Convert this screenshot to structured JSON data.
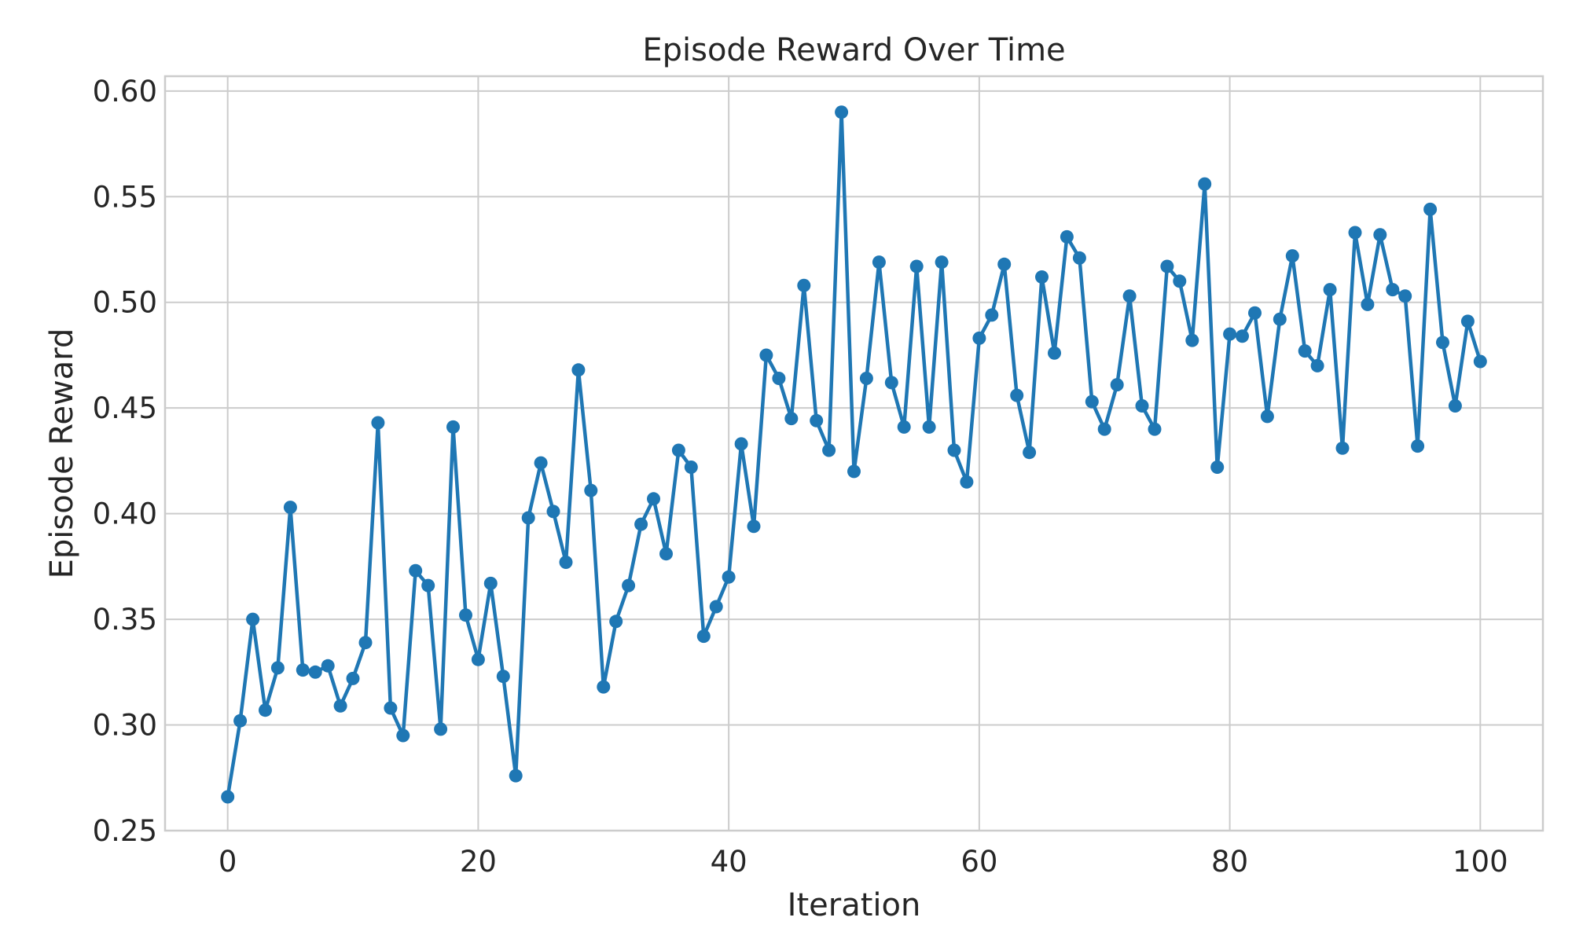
{
  "chart_data": {
    "type": "line",
    "title": "Episode Reward Over Time",
    "xlabel": "Iteration",
    "ylabel": "Episode Reward",
    "xlim": [
      -5,
      105
    ],
    "ylim": [
      0.25,
      0.607
    ],
    "xticks": [
      0,
      20,
      40,
      60,
      80,
      100
    ],
    "xtick_labels": [
      "0",
      "20",
      "40",
      "60",
      "80",
      "100"
    ],
    "yticks": [
      0.25,
      0.3,
      0.35,
      0.4,
      0.45,
      0.5,
      0.55,
      0.6
    ],
    "ytick_labels": [
      "0.25",
      "0.30",
      "0.35",
      "0.40",
      "0.45",
      "0.50",
      "0.55",
      "0.60"
    ],
    "grid": true,
    "color": "#1f77b4",
    "series": [
      {
        "x": [
          0,
          1,
          2,
          3,
          4,
          5,
          6,
          7,
          8,
          9,
          10,
          11,
          12,
          13,
          14,
          15,
          16,
          17,
          18,
          19,
          20,
          21,
          22,
          23,
          24,
          25,
          26,
          27,
          28,
          29,
          30,
          31,
          32,
          33,
          34,
          35,
          36,
          37,
          38,
          39,
          40,
          41,
          42,
          43,
          44,
          45,
          46,
          47,
          48,
          49,
          50,
          51,
          52,
          53,
          54,
          55,
          56,
          57,
          58,
          59,
          60,
          61,
          62,
          63,
          64,
          65,
          66,
          67,
          68,
          69,
          70,
          71,
          72,
          73,
          74,
          75,
          76,
          77,
          78,
          79,
          80,
          81,
          82,
          83,
          84,
          85,
          86,
          87,
          88,
          89,
          90,
          91,
          92,
          93,
          94,
          95,
          96,
          97,
          98,
          99,
          100
        ],
        "values": [
          0.266,
          0.302,
          0.35,
          0.307,
          0.327,
          0.403,
          0.326,
          0.325,
          0.328,
          0.309,
          0.322,
          0.339,
          0.443,
          0.308,
          0.295,
          0.373,
          0.366,
          0.298,
          0.441,
          0.352,
          0.331,
          0.367,
          0.323,
          0.276,
          0.398,
          0.424,
          0.401,
          0.377,
          0.468,
          0.411,
          0.318,
          0.349,
          0.366,
          0.395,
          0.407,
          0.381,
          0.43,
          0.422,
          0.342,
          0.356,
          0.37,
          0.433,
          0.394,
          0.475,
          0.464,
          0.445,
          0.508,
          0.444,
          0.43,
          0.59,
          0.42,
          0.464,
          0.519,
          0.462,
          0.441,
          0.517,
          0.441,
          0.519,
          0.43,
          0.415,
          0.483,
          0.494,
          0.518,
          0.456,
          0.429,
          0.512,
          0.476,
          0.531,
          0.521,
          0.453,
          0.44,
          0.461,
          0.503,
          0.451,
          0.44,
          0.517,
          0.51,
          0.482,
          0.556,
          0.422,
          0.485,
          0.484,
          0.495,
          0.446,
          0.492,
          0.522,
          0.477,
          0.47,
          0.506,
          0.431,
          0.533,
          0.499,
          0.532,
          0.506,
          0.503,
          0.432,
          0.544,
          0.481,
          0.451,
          0.491,
          0.472
        ]
      }
    ]
  }
}
